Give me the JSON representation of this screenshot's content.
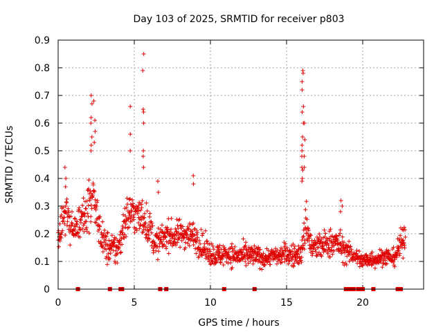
{
  "chart_data": {
    "type": "scatter",
    "title": "Day 103 of 2025, SRMTID for receiver p803",
    "xlabel": "GPS time / hours",
    "ylabel": "SRMTID / TECUs",
    "xlim": [
      0,
      24
    ],
    "ylim": [
      0,
      0.9
    ],
    "x_ticks": [
      0,
      5,
      10,
      15,
      20
    ],
    "x_tick_labels": [
      "0",
      "5",
      "10",
      "15",
      "20"
    ],
    "y_ticks": [
      0,
      0.1,
      0.2,
      0.3,
      0.4,
      0.5,
      0.6,
      0.7,
      0.8,
      0.9
    ],
    "y_tick_labels": [
      "0",
      "0.1",
      "0.2",
      "0.3",
      "0.4",
      "0.5",
      "0.6",
      "0.7",
      "0.8",
      "0.9"
    ],
    "grid": true,
    "marker": "+",
    "color": "#e00000",
    "sampling_hours": 0.0167,
    "series": [
      {
        "name": "SRMTID",
        "base_profile": {
          "x": [
            0.0,
            0.3,
            0.6,
            1.0,
            1.3,
            1.7,
            2.0,
            2.3,
            2.6,
            2.9,
            3.2,
            3.6,
            4.0,
            4.3,
            4.7,
            5.0,
            5.3,
            5.6,
            6.0,
            6.4,
            6.8,
            7.2,
            7.6,
            8.0,
            8.5,
            9.0,
            9.5,
            10.0,
            10.5,
            11.0,
            11.5,
            12.0,
            12.5,
            13.0,
            13.5,
            14.0,
            14.5,
            15.0,
            15.5,
            16.0,
            16.3,
            16.6,
            17.0,
            17.5,
            18.0,
            18.5,
            19.0,
            19.5,
            20.0,
            20.5,
            21.0,
            21.5,
            22.0,
            22.5,
            22.8
          ],
          "y": [
            0.17,
            0.25,
            0.28,
            0.2,
            0.24,
            0.27,
            0.3,
            0.32,
            0.25,
            0.18,
            0.15,
            0.14,
            0.15,
            0.24,
            0.28,
            0.27,
            0.26,
            0.26,
            0.22,
            0.16,
            0.18,
            0.2,
            0.19,
            0.2,
            0.2,
            0.19,
            0.15,
            0.13,
            0.12,
            0.13,
            0.12,
            0.12,
            0.12,
            0.12,
            0.11,
            0.12,
            0.12,
            0.13,
            0.12,
            0.13,
            0.25,
            0.15,
            0.15,
            0.16,
            0.17,
            0.16,
            0.13,
            0.12,
            0.1,
            0.11,
            0.11,
            0.12,
            0.11,
            0.16,
            0.2
          ],
          "scatter": [
            0.06,
            0.07,
            0.07,
            0.05,
            0.06,
            0.07,
            0.08,
            0.08,
            0.07,
            0.06,
            0.06,
            0.06,
            0.06,
            0.07,
            0.07,
            0.07,
            0.07,
            0.07,
            0.06,
            0.05,
            0.05,
            0.05,
            0.05,
            0.05,
            0.05,
            0.05,
            0.05,
            0.04,
            0.04,
            0.04,
            0.04,
            0.04,
            0.04,
            0.04,
            0.03,
            0.03,
            0.03,
            0.04,
            0.04,
            0.04,
            0.08,
            0.05,
            0.05,
            0.05,
            0.05,
            0.05,
            0.04,
            0.03,
            0.03,
            0.03,
            0.03,
            0.03,
            0.03,
            0.05,
            0.06
          ]
        },
        "spikes": [
          {
            "x": 0.5,
            "y": [
              0.44,
              0.4,
              0.37
            ]
          },
          {
            "x": 2.2,
            "y": [
              0.7,
              0.67,
              0.62,
              0.6,
              0.55,
              0.52,
              0.5
            ]
          },
          {
            "x": 2.4,
            "y": [
              0.68,
              0.61,
              0.57,
              0.53
            ]
          },
          {
            "x": 4.7,
            "y": [
              0.66,
              0.56,
              0.5
            ]
          },
          {
            "x": 5.6,
            "y": [
              0.85,
              0.79,
              0.65,
              0.64,
              0.6,
              0.5,
              0.48,
              0.44
            ]
          },
          {
            "x": 6.6,
            "y": [
              0.39,
              0.35
            ]
          },
          {
            "x": 8.9,
            "y": [
              0.41,
              0.38
            ]
          },
          {
            "x": 16.05,
            "y": [
              0.79,
              0.78,
              0.75,
              0.72,
              0.66,
              0.64,
              0.6,
              0.55,
              0.52,
              0.5,
              0.48,
              0.44,
              0.43,
              0.4,
              0.39
            ]
          },
          {
            "x": 16.2,
            "y": [
              0.6,
              0.54,
              0.48,
              0.44
            ]
          },
          {
            "x": 18.6,
            "y": [
              0.32,
              0.3,
              0.28
            ]
          }
        ],
        "zero_markers_x": [
          1.3,
          3.4,
          4.1,
          4.2,
          6.7,
          7.1,
          10.9,
          12.9,
          18.9,
          19.1,
          19.2,
          19.4,
          19.7,
          19.9,
          20.0,
          20.7,
          22.3,
          22.5
        ]
      }
    ]
  }
}
